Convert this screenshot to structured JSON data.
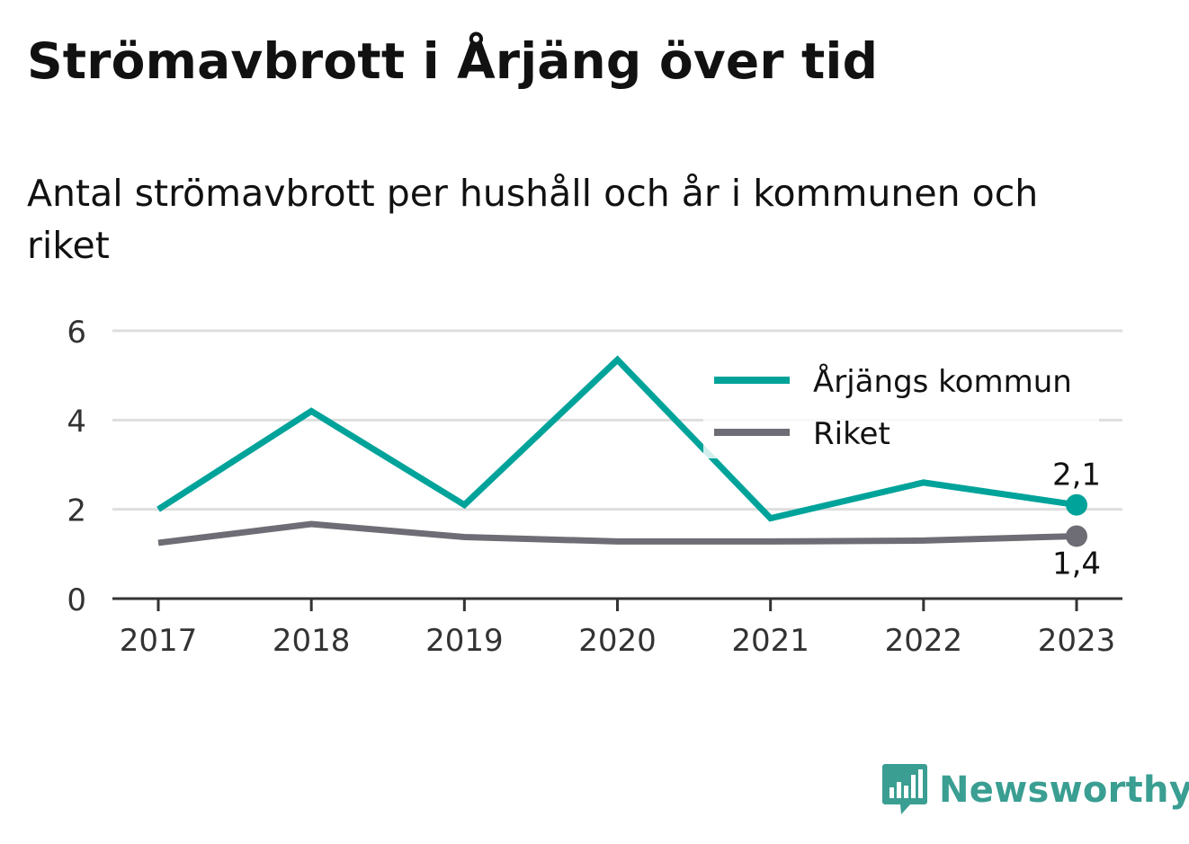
{
  "title": "Strömavbrott i Årjäng över tid",
  "subtitle": "Antal strömavbrott per hushåll och år i kommunen och riket",
  "brand": {
    "name": "Newsworthy",
    "icon": "bar-chart-speech-bubble-icon",
    "color": "#3a9e92"
  },
  "chart_data": {
    "type": "line",
    "x": [
      "2017",
      "2018",
      "2019",
      "2020",
      "2021",
      "2022",
      "2023"
    ],
    "ylim": [
      0,
      6
    ],
    "yticks": [
      "0",
      "2",
      "4",
      "6"
    ],
    "grid": true,
    "legend_position": "top-right",
    "series": [
      {
        "name": "Årjängs kommun",
        "color": "#00a39a",
        "values": [
          2.0,
          4.2,
          2.1,
          5.35,
          1.8,
          2.6,
          2.1
        ],
        "end_label": "2,1"
      },
      {
        "name": "Riket",
        "color": "#6e6d75",
        "values": [
          1.25,
          1.67,
          1.38,
          1.28,
          1.28,
          1.3,
          1.4
        ],
        "end_label": "1,4"
      }
    ]
  }
}
